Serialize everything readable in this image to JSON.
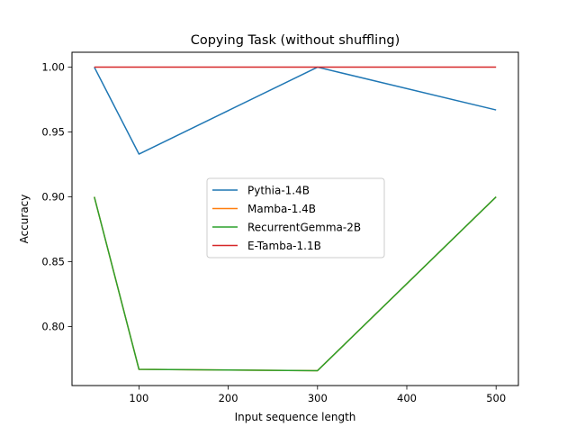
{
  "chart_data": {
    "type": "line",
    "title": "Copying Task (without shuffling)",
    "xlabel": "Input sequence length",
    "ylabel": "Accuracy",
    "xlim": [
      25,
      525
    ],
    "ylim": [
      0.7545,
      1.0115
    ],
    "xticks": [
      100,
      200,
      300,
      400,
      500
    ],
    "yticks": [
      0.8,
      0.85,
      0.9,
      0.95,
      1.0
    ],
    "x": [
      50,
      100,
      300,
      500
    ],
    "series": [
      {
        "name": "Pythia-1.4B",
        "color": "#1f77b4",
        "values": [
          1.0,
          0.933,
          1.0,
          0.967
        ]
      },
      {
        "name": "Mamba-1.4B",
        "color": "#ff7f0e",
        "values": [
          0.9,
          0.767,
          0.766,
          0.9
        ]
      },
      {
        "name": "RecurrentGemma-2B",
        "color": "#2ca02c",
        "values": [
          0.9,
          0.767,
          0.766,
          0.9
        ]
      },
      {
        "name": "E-Tamba-1.1B",
        "color": "#d62728",
        "values": [
          1.0,
          1.0,
          1.0,
          1.0
        ]
      }
    ],
    "grid": false,
    "legend_position": "center"
  }
}
